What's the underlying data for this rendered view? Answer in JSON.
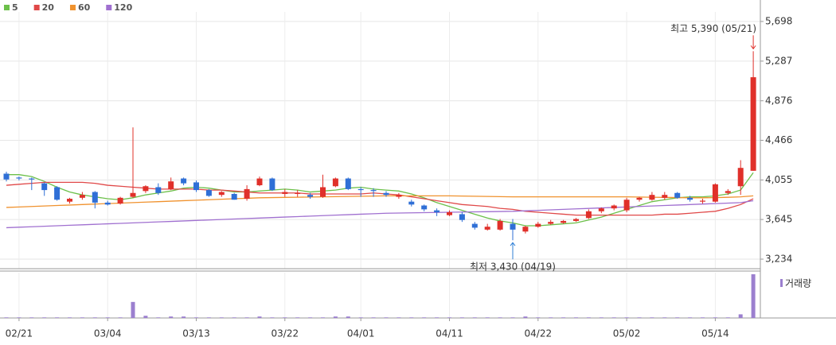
{
  "chart_data": {
    "type": "candlestick",
    "categories": [
      null,
      "02/21",
      null,
      null,
      null,
      null,
      null,
      null,
      "03/04",
      null,
      null,
      null,
      null,
      null,
      null,
      "03/13",
      null,
      null,
      null,
      null,
      null,
      null,
      "03/22",
      null,
      null,
      null,
      null,
      null,
      "04/01",
      null,
      null,
      null,
      null,
      null,
      null,
      "04/11",
      null,
      null,
      null,
      null,
      null,
      null,
      "04/22",
      null,
      null,
      null,
      null,
      null,
      null,
      "05/02",
      null,
      null,
      null,
      null,
      null,
      null,
      "05/14",
      null,
      null,
      null
    ],
    "ohlc": [
      [
        4120,
        4140,
        4040,
        4060
      ],
      [
        4080,
        4090,
        4050,
        4070
      ],
      [
        4070,
        4080,
        3950,
        4060
      ],
      [
        4020,
        4030,
        3890,
        3950
      ],
      [
        3980,
        3990,
        3840,
        3850
      ],
      [
        3830,
        3870,
        3810,
        3860
      ],
      [
        3870,
        3930,
        3850,
        3900
      ],
      [
        3930,
        3940,
        3760,
        3820
      ],
      [
        3820,
        3840,
        3790,
        3800
      ],
      [
        3810,
        3880,
        3800,
        3870
      ],
      [
        3880,
        4600,
        3870,
        3920
      ],
      [
        3940,
        4000,
        3920,
        3990
      ],
      [
        3980,
        4020,
        3900,
        3920
      ],
      [
        3960,
        4080,
        3950,
        4040
      ],
      [
        4070,
        4080,
        4000,
        4020
      ],
      [
        4030,
        4050,
        3930,
        3950
      ],
      [
        3950,
        3960,
        3880,
        3890
      ],
      [
        3900,
        3940,
        3880,
        3930
      ],
      [
        3910,
        3920,
        3850,
        3850
      ],
      [
        3860,
        4000,
        3840,
        3960
      ],
      [
        4000,
        4090,
        3990,
        4070
      ],
      [
        4070,
        4080,
        3940,
        3950
      ],
      [
        3910,
        3960,
        3880,
        3930
      ],
      [
        3910,
        3950,
        3880,
        3920
      ],
      [
        3900,
        3920,
        3860,
        3880
      ],
      [
        3880,
        4110,
        3870,
        3980
      ],
      [
        3990,
        4080,
        3980,
        4070
      ],
      [
        4070,
        4080,
        3950,
        3960
      ],
      [
        3960,
        3980,
        3880,
        3950
      ],
      [
        3950,
        3970,
        3880,
        3940
      ],
      [
        3920,
        3940,
        3880,
        3900
      ],
      [
        3880,
        3920,
        3860,
        3900
      ],
      [
        3830,
        3850,
        3780,
        3800
      ],
      [
        3790,
        3800,
        3730,
        3750
      ],
      [
        3740,
        3760,
        3680,
        3720
      ],
      [
        3690,
        3740,
        3680,
        3720
      ],
      [
        3700,
        3720,
        3620,
        3640
      ],
      [
        3600,
        3620,
        3540,
        3560
      ],
      [
        3540,
        3600,
        3530,
        3570
      ],
      [
        3540,
        3650,
        3530,
        3630
      ],
      [
        3600,
        3650,
        3430,
        3540
      ],
      [
        3520,
        3580,
        3500,
        3570
      ],
      [
        3570,
        3620,
        3560,
        3600
      ],
      [
        3600,
        3640,
        3590,
        3620
      ],
      [
        3610,
        3640,
        3600,
        3630
      ],
      [
        3630,
        3660,
        3620,
        3650
      ],
      [
        3660,
        3750,
        3650,
        3730
      ],
      [
        3730,
        3770,
        3710,
        3760
      ],
      [
        3760,
        3800,
        3740,
        3790
      ],
      [
        3740,
        3870,
        3720,
        3850
      ],
      [
        3850,
        3880,
        3830,
        3870
      ],
      [
        3850,
        3930,
        3840,
        3900
      ],
      [
        3870,
        3930,
        3850,
        3900
      ],
      [
        3920,
        3930,
        3860,
        3870
      ],
      [
        3870,
        3890,
        3830,
        3850
      ],
      [
        3830,
        3860,
        3810,
        3840
      ],
      [
        3830,
        4020,
        3820,
        4010
      ],
      [
        3920,
        3960,
        3900,
        3940
      ],
      [
        3990,
        4260,
        3900,
        4180
      ],
      [
        4150,
        5390,
        4150,
        5120
      ]
    ],
    "up_color": "#e0302a",
    "down_color": "#2f6fd6",
    "series": [
      {
        "name": "5",
        "color": "#6cc04a",
        "values": [
          4110,
          4110,
          4090,
          4040,
          3980,
          3930,
          3900,
          3880,
          3860,
          3850,
          3870,
          3900,
          3920,
          3940,
          3970,
          3980,
          3970,
          3950,
          3930,
          3930,
          3940,
          3950,
          3960,
          3950,
          3930,
          3940,
          3950,
          3970,
          3980,
          3960,
          3950,
          3940,
          3910,
          3870,
          3820,
          3780,
          3740,
          3700,
          3660,
          3630,
          3610,
          3580,
          3580,
          3590,
          3600,
          3610,
          3640,
          3670,
          3710,
          3750,
          3790,
          3830,
          3850,
          3870,
          3880,
          3880,
          3890,
          3910,
          3950,
          4130
        ]
      },
      {
        "name": "20",
        "color": "#e04848",
        "values": [
          4000,
          4010,
          4020,
          4030,
          4030,
          4030,
          4030,
          4020,
          4000,
          3990,
          3980,
          3970,
          3960,
          3960,
          3960,
          3960,
          3950,
          3950,
          3940,
          3930,
          3920,
          3920,
          3920,
          3920,
          3910,
          3910,
          3910,
          3910,
          3910,
          3920,
          3910,
          3900,
          3880,
          3860,
          3840,
          3820,
          3800,
          3790,
          3780,
          3760,
          3750,
          3730,
          3720,
          3710,
          3700,
          3690,
          3690,
          3690,
          3690,
          3690,
          3690,
          3690,
          3700,
          3700,
          3710,
          3720,
          3730,
          3760,
          3800,
          3860
        ]
      },
      {
        "name": "60",
        "color": "#f0922e",
        "values": [
          3770,
          3775,
          3780,
          3785,
          3790,
          3795,
          3800,
          3805,
          3810,
          3815,
          3820,
          3825,
          3830,
          3835,
          3840,
          3845,
          3850,
          3855,
          3860,
          3865,
          3870,
          3872,
          3874,
          3876,
          3878,
          3880,
          3882,
          3884,
          3886,
          3888,
          3890,
          3890,
          3890,
          3890,
          3890,
          3890,
          3888,
          3886,
          3884,
          3882,
          3880,
          3880,
          3880,
          3880,
          3880,
          3880,
          3880,
          3880,
          3880,
          3880,
          3878,
          3876,
          3874,
          3872,
          3870,
          3870,
          3872,
          3875,
          3880,
          3890
        ]
      },
      {
        "name": "120",
        "color": "#a070d0",
        "values": [
          3560,
          3565,
          3570,
          3575,
          3580,
          3585,
          3590,
          3595,
          3600,
          3605,
          3610,
          3615,
          3620,
          3625,
          3630,
          3635,
          3640,
          3645,
          3650,
          3655,
          3660,
          3665,
          3670,
          3675,
          3680,
          3685,
          3690,
          3695,
          3700,
          3705,
          3710,
          3712,
          3714,
          3716,
          3718,
          3720,
          3722,
          3724,
          3726,
          3728,
          3730,
          3735,
          3740,
          3745,
          3750,
          3755,
          3760,
          3765,
          3770,
          3775,
          3780,
          3785,
          3790,
          3795,
          3800,
          3805,
          3810,
          3815,
          3820,
          3840
        ]
      }
    ],
    "volume": {
      "name": "거래량",
      "color": "#9b7fcf",
      "values": [
        40000,
        40000,
        40000,
        40000,
        40000,
        40000,
        40000,
        40000,
        40000,
        40000,
        1100000,
        150000,
        40000,
        100000,
        100000,
        40000,
        40000,
        40000,
        40000,
        40000,
        100000,
        40000,
        40000,
        40000,
        40000,
        40000,
        100000,
        100000,
        40000,
        40000,
        40000,
        40000,
        40000,
        40000,
        40000,
        40000,
        40000,
        40000,
        40000,
        40000,
        40000,
        100000,
        40000,
        40000,
        40000,
        40000,
        40000,
        40000,
        40000,
        40000,
        40000,
        40000,
        40000,
        40000,
        40000,
        40000,
        40000,
        40000,
        250000,
        3000000
      ]
    },
    "annotations": [
      {
        "text": "최고 5,390 (05/21)",
        "value": 5390,
        "color": "#e0302a",
        "kind": "high"
      },
      {
        "text": "최저 3,430 (04/19)",
        "value": 3430,
        "color": "#2f7fd6",
        "kind": "low"
      }
    ],
    "ylim": [
      3135,
      5797
    ],
    "yticks": [
      {
        "value": 3234,
        "label": "3,234"
      },
      {
        "value": 3645,
        "label": "3,645"
      },
      {
        "value": 4055,
        "label": "4,055"
      },
      {
        "value": 4466,
        "label": "4,466"
      },
      {
        "value": 4876,
        "label": "4,876"
      },
      {
        "value": 5287,
        "label": "5,287"
      },
      {
        "value": 5698,
        "label": "5,698"
      }
    ],
    "grid": true
  }
}
